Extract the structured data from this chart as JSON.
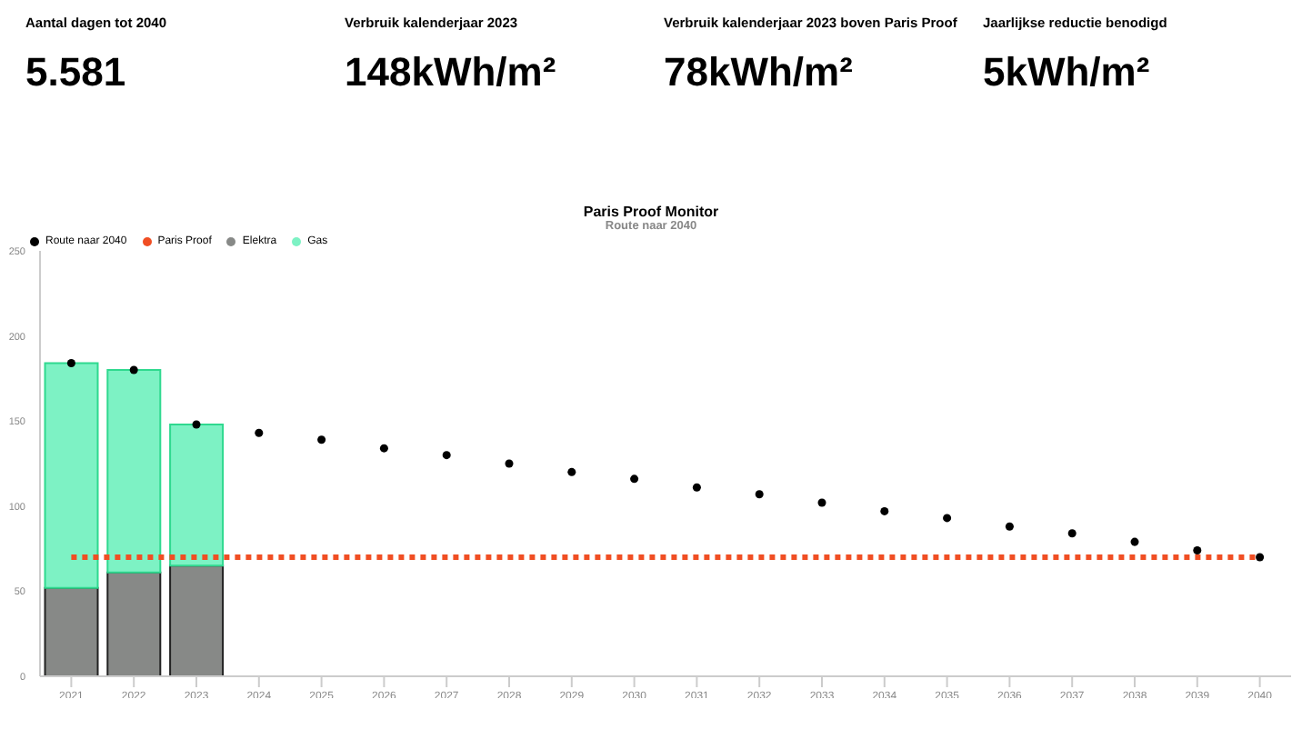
{
  "chart_data": [
    {
      "type": "other",
      "annotations": [
        "Aantal dagen tot 2040",
        "5.581",
        "Verbruik kalenderjaar 2023",
        "148kWh/m²",
        "Verbruik kalenderjaar 2023 boven Paris Proof",
        "78kWh/m²",
        "Jaarlijkse reductie benodigd",
        "5kWh/m²"
      ]
    },
    {
      "type": "bar",
      "title": "Paris Proof Monitor",
      "subtitle": "Route naar 2040",
      "categories": [
        "2021",
        "2022",
        "2023",
        "2024",
        "2025",
        "2026",
        "2027",
        "2028",
        "2029",
        "2030",
        "2031",
        "2032",
        "2033",
        "2034",
        "2035",
        "2036",
        "2037",
        "2038",
        "2039",
        "2040"
      ],
      "stacked": true,
      "legend": "top left",
      "grid": false,
      "ylim": [
        0,
        250
      ],
      "yticks": [
        0,
        50,
        100,
        150,
        200,
        250
      ],
      "series": [
        {
          "name": "Route naar 2040",
          "type": "scatter",
          "color": "#000000",
          "marker": "circle",
          "values": [
            184,
            180,
            148,
            143,
            139,
            134,
            130,
            125,
            120,
            116,
            111,
            107,
            102,
            97,
            93,
            88,
            84,
            79,
            74,
            70
          ]
        },
        {
          "name": "Paris Proof",
          "type": "line",
          "color": "#f04e23",
          "line_style": "dotted",
          "marker": "none",
          "values": [
            70,
            70,
            70,
            70,
            70,
            70,
            70,
            70,
            70,
            70,
            70,
            70,
            70,
            70,
            70,
            70,
            70,
            70,
            70,
            70
          ]
        },
        {
          "name": "Elektra",
          "type": "bar",
          "color": "#878987",
          "values": [
            52,
            61,
            65,
            null,
            null,
            null,
            null,
            null,
            null,
            null,
            null,
            null,
            null,
            null,
            null,
            null,
            null,
            null,
            null,
            null
          ]
        },
        {
          "name": "Gas",
          "type": "bar",
          "color": "#7df2c4",
          "values": [
            132,
            119,
            83,
            null,
            null,
            null,
            null,
            null,
            null,
            null,
            null,
            null,
            null,
            null,
            null,
            null,
            null,
            null,
            null,
            null
          ]
        }
      ]
    }
  ]
}
